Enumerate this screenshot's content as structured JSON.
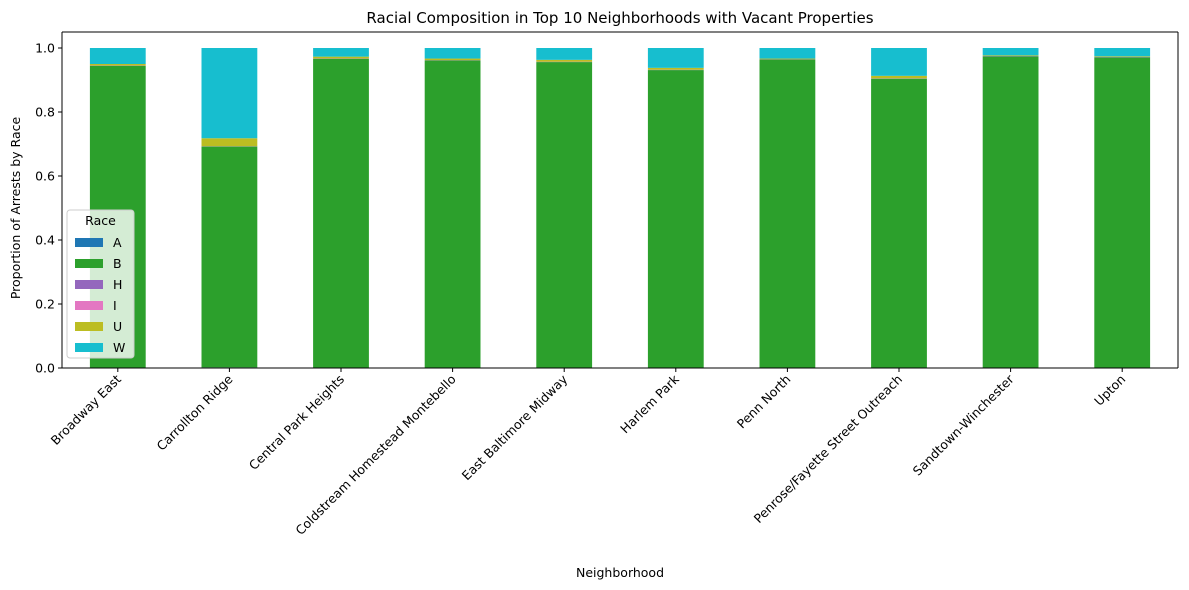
{
  "chart_data": {
    "type": "bar",
    "stacked": true,
    "title": "Racial Composition in Top 10 Neighborhoods with Vacant Properties",
    "xlabel": "Neighborhood",
    "ylabel": "Proportion of Arrests by Race",
    "ylim": [
      0,
      1.05
    ],
    "yticks": [
      "0.0",
      "0.2",
      "0.4",
      "0.6",
      "0.8",
      "1.0"
    ],
    "categories": [
      "Broadway East",
      "Carrollton Ridge",
      "Central Park Heights",
      "Coldstream Homestead Montebello",
      "East Baltimore Midway",
      "Harlem Park",
      "Penn North",
      "Penrose/Fayette Street Outreach",
      "Sandtown-Winchester",
      "Upton"
    ],
    "legend": {
      "title": "Race",
      "position": "lower-left"
    },
    "grid": false,
    "series": [
      {
        "name": "A",
        "color": "#1f77b4",
        "values": [
          0.001,
          0.002,
          0.001,
          0.001,
          0.001,
          0.001,
          0.001,
          0.001,
          0.001,
          0.001
        ]
      },
      {
        "name": "B",
        "color": "#2ca02c",
        "values": [
          0.943,
          0.69,
          0.965,
          0.96,
          0.955,
          0.93,
          0.963,
          0.903,
          0.973,
          0.97
        ]
      },
      {
        "name": "H",
        "color": "#9467bd",
        "values": [
          0.001,
          0.001,
          0.001,
          0.001,
          0.001,
          0.001,
          0.001,
          0.001,
          0.001,
          0.001
        ]
      },
      {
        "name": "I",
        "color": "#e377c2",
        "values": [
          0.0,
          0.0,
          0.0,
          0.0,
          0.0,
          0.0,
          0.0,
          0.0,
          0.0,
          0.0
        ]
      },
      {
        "name": "U",
        "color": "#bcbd22",
        "values": [
          0.005,
          0.025,
          0.006,
          0.005,
          0.006,
          0.006,
          0.002,
          0.008,
          0.002,
          0.002
        ]
      },
      {
        "name": "W",
        "color": "#17becf",
        "values": [
          0.05,
          0.282,
          0.027,
          0.033,
          0.037,
          0.062,
          0.033,
          0.087,
          0.023,
          0.026
        ]
      }
    ]
  }
}
